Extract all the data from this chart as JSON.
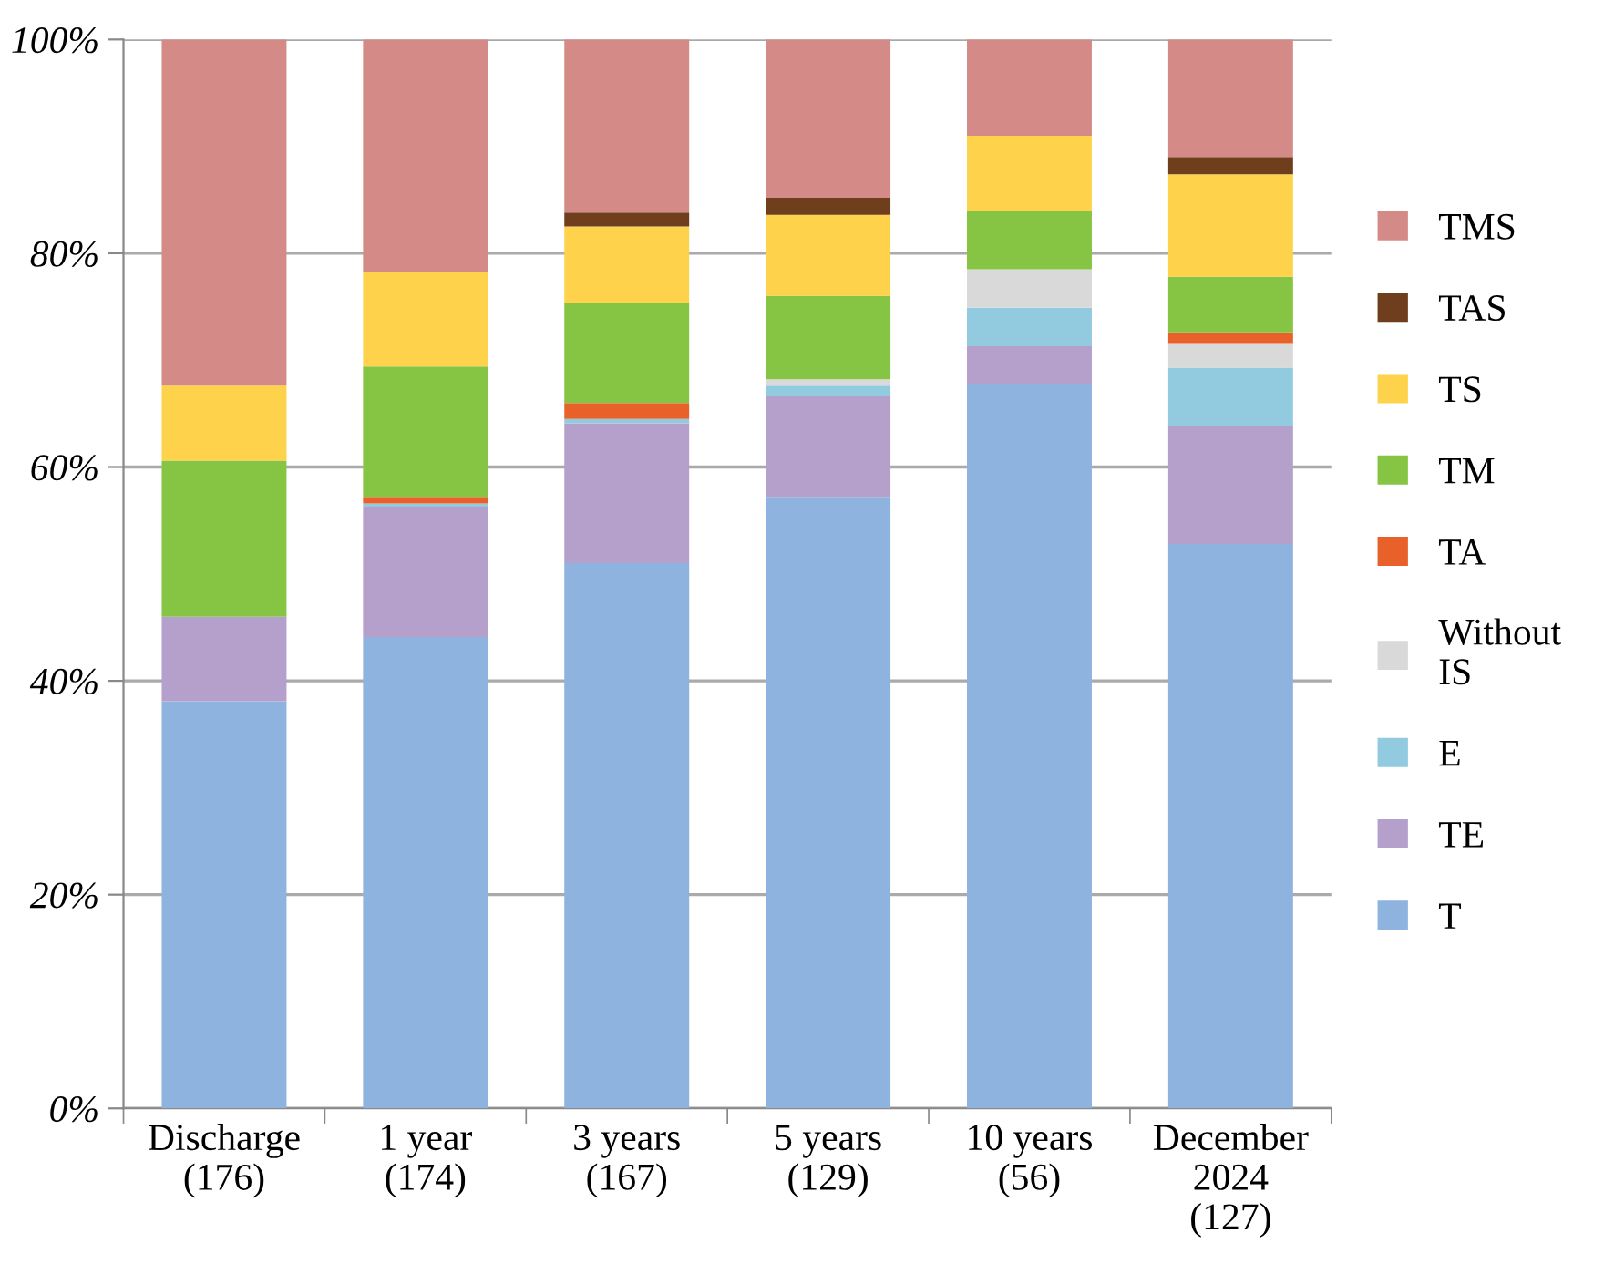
{
  "chart_data": {
    "type": "bar",
    "stacked": true,
    "categories": [
      "Discharge\n(176)",
      "1 year\n(174)",
      "3 years\n(167)",
      "5 years\n(129)",
      "10 years\n(56)",
      "December\n2024\n(127)"
    ],
    "series": [
      {
        "name": "T",
        "color": "#8db3de",
        "values": [
          38.1,
          44.1,
          51.0,
          57.2,
          67.8,
          52.8
        ]
      },
      {
        "name": "TE",
        "color": "#b59fcb",
        "values": [
          7.9,
          12.2,
          13.1,
          9.4,
          3.5,
          11.0
        ]
      },
      {
        "name": "E",
        "color": "#92cadf",
        "values": [
          0,
          0.3,
          0.4,
          1.0,
          3.6,
          5.5
        ]
      },
      {
        "name": "Without\nIS",
        "color": "#d9d9d9",
        "values": [
          0,
          0,
          0,
          0.6,
          3.6,
          2.3
        ]
      },
      {
        "name": "TA",
        "color": "#e8612a",
        "values": [
          0,
          0.6,
          1.5,
          0,
          0,
          1.0
        ]
      },
      {
        "name": "TM",
        "color": "#86c443",
        "values": [
          14.6,
          12.2,
          9.4,
          7.8,
          5.5,
          5.2
        ]
      },
      {
        "name": "TS",
        "color": "#fed24a",
        "values": [
          7.0,
          8.8,
          7.1,
          7.6,
          7.0,
          9.6
        ]
      },
      {
        "name": "TAS",
        "color": "#6f3e1d",
        "values": [
          0,
          0,
          1.3,
          1.6,
          0,
          1.6
        ]
      },
      {
        "name": "TMS",
        "color": "#d48b87",
        "values": [
          32.4,
          21.8,
          16.2,
          14.8,
          9.0,
          11.0
        ]
      }
    ],
    "ylim": [
      0,
      100
    ],
    "yticks": [
      {
        "value": 0,
        "label": "0%"
      },
      {
        "value": 20,
        "label": "20%"
      },
      {
        "value": 40,
        "label": "40%"
      },
      {
        "value": 60,
        "label": "60%"
      },
      {
        "value": 80,
        "label": "80%"
      },
      {
        "value": 100,
        "label": "100%"
      }
    ],
    "grid": "y",
    "legend": "right"
  }
}
